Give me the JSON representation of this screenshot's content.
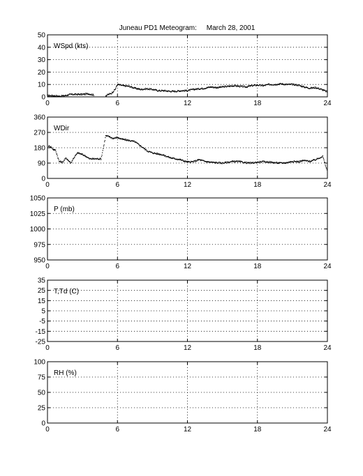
{
  "title": "Juneau PD1 Meteogram:     March 28, 2001",
  "chart_data": [
    {
      "type": "scatter",
      "label": "WSpd (kts)",
      "xlim": [
        0,
        24
      ],
      "xticks": [
        "0",
        "6",
        "12",
        "18",
        "24"
      ],
      "ylim": [
        0,
        50
      ],
      "yticks": [
        "0",
        "10",
        "20",
        "30",
        "40",
        "50"
      ],
      "grid": true,
      "x": [
        0,
        0.5,
        1,
        1.5,
        2,
        2.5,
        3,
        3.5,
        4,
        4.5,
        5,
        5.5,
        5.8,
        6,
        6.5,
        7,
        7.5,
        8,
        8.5,
        9,
        9.5,
        10,
        10.5,
        11,
        11.5,
        12,
        12.5,
        13,
        13.5,
        14,
        14.5,
        15,
        15.5,
        16,
        16.5,
        17,
        17.5,
        18,
        18.5,
        19,
        19.5,
        20,
        20.5,
        21,
        21.5,
        22,
        22.5,
        23,
        23.5,
        24
      ],
      "values": [
        1,
        1,
        0.5,
        1,
        2,
        2,
        2,
        2.5,
        1.5,
        null,
        1,
        3,
        6,
        10,
        9,
        8.5,
        7,
        6,
        6.5,
        6,
        5,
        5,
        4.5,
        4.5,
        5,
        5,
        6,
        6.5,
        7,
        8,
        7.5,
        8,
        8.5,
        9,
        8.5,
        8,
        9,
        9.5,
        9,
        10,
        10,
        10.5,
        10,
        10,
        9.5,
        8,
        7,
        7.5,
        6,
        4
      ]
    },
    {
      "type": "scatter",
      "label": "WDir",
      "xlim": [
        0,
        24
      ],
      "xticks": [
        "0",
        "6",
        "12",
        "18",
        "24"
      ],
      "ylim": [
        0,
        360
      ],
      "yticks": [
        "0",
        "90",
        "180",
        "270",
        "360"
      ],
      "grid": true,
      "x": [
        0.1,
        0.3,
        0.5,
        0.7,
        1,
        1.3,
        1.6,
        2,
        2.3,
        2.6,
        3,
        3.3,
        3.6,
        3.9,
        4.2,
        4.6,
        5,
        5.3,
        5.6,
        6,
        6.4,
        6.8,
        7.2,
        7.5,
        7.8,
        8.2,
        8.6,
        9,
        9.4,
        9.8,
        10.2,
        10.6,
        11,
        11.4,
        11.8,
        12.2,
        12.6,
        13,
        13.5,
        14,
        14.5,
        15,
        15.5,
        16,
        16.5,
        17,
        17.5,
        18,
        18.5,
        19,
        19.5,
        20,
        20.5,
        21,
        21.5,
        22,
        22.5,
        23,
        23.3,
        23.6,
        24
      ],
      "values": [
        190,
        185,
        170,
        165,
        100,
        95,
        120,
        90,
        125,
        150,
        140,
        130,
        115,
        115,
        115,
        115,
        250,
        245,
        235,
        240,
        230,
        225,
        220,
        215,
        200,
        180,
        160,
        150,
        145,
        140,
        130,
        120,
        115,
        110,
        100,
        95,
        100,
        110,
        100,
        95,
        92,
        90,
        95,
        100,
        98,
        92,
        90,
        95,
        98,
        96,
        92,
        90,
        92,
        100,
        98,
        105,
        100,
        110,
        120,
        130,
        40
      ]
    },
    {
      "type": "line",
      "label": "P (mb)",
      "xlim": [
        0,
        24
      ],
      "xticks": [
        "0",
        "6",
        "12",
        "18",
        "24"
      ],
      "ylim": [
        950,
        1050
      ],
      "yticks": [
        "950",
        "975",
        "1000",
        "1025",
        "1050"
      ],
      "grid": true,
      "x": [],
      "values": []
    },
    {
      "type": "line",
      "label": "T,Td (C)",
      "xlim": [
        0,
        24
      ],
      "xticks": [
        "0",
        "6",
        "12",
        "18",
        "24"
      ],
      "ylim": [
        -25,
        35
      ],
      "yticks": [
        "-25",
        "-15",
        "-5",
        "5",
        "15",
        "25",
        "35"
      ],
      "grid": true,
      "x": [],
      "values": []
    },
    {
      "type": "line",
      "label": "RH (%)",
      "xlim": [
        0,
        24
      ],
      "xticks": [
        "0",
        "6",
        "12",
        "18",
        "24"
      ],
      "ylim": [
        0,
        100
      ],
      "yticks": [
        "0",
        "25",
        "50",
        "75",
        "100"
      ],
      "grid": true,
      "x": [],
      "values": []
    }
  ]
}
